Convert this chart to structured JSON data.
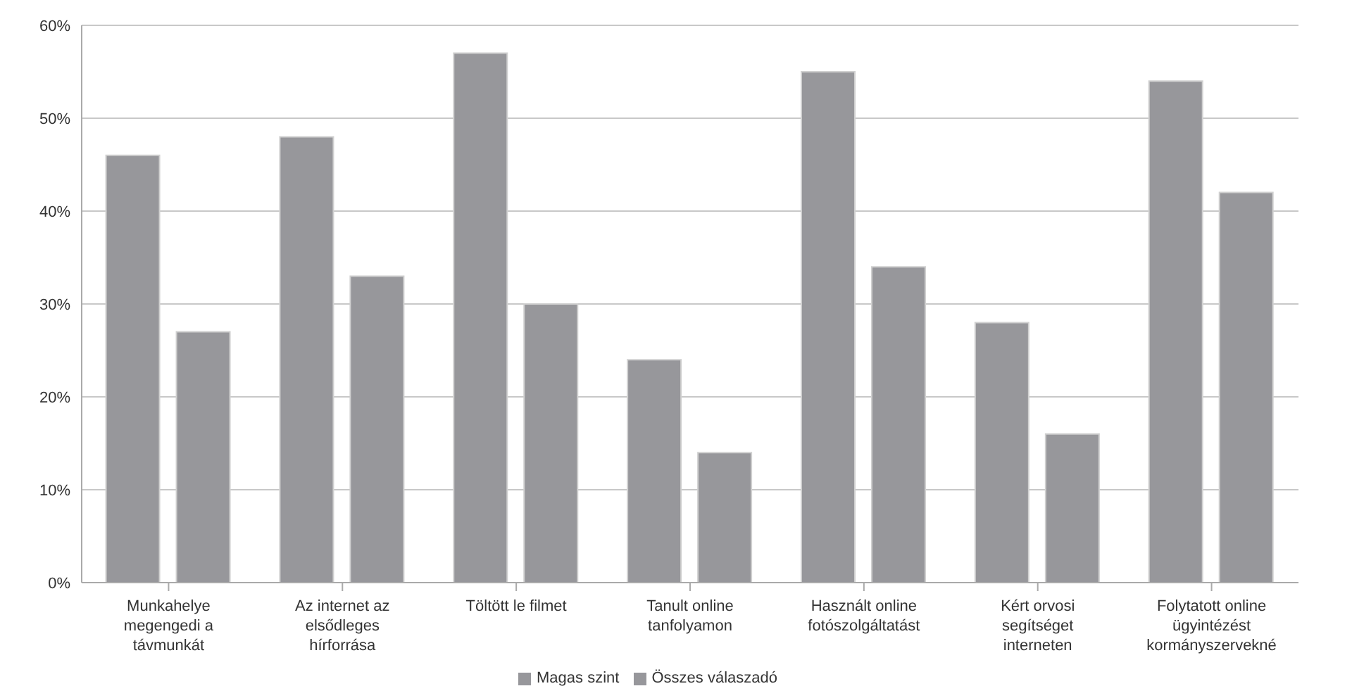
{
  "chart_data": {
    "type": "bar",
    "categories": [
      "Munkahelye megengedi a távmunkát",
      "Az internet az elsődleges hírforrása",
      "Töltött le filmet",
      "Tanult online tanfolyamon",
      "Használt online fotószolgáltatást",
      "Kért orvosi segítséget interneten",
      "Folytatott online ügyintézést kormányszervekné"
    ],
    "series": [
      {
        "name": "Magas szint",
        "color": "#97979b",
        "values": [
          46,
          48,
          57,
          24,
          55,
          28,
          54
        ]
      },
      {
        "name": "Összes válaszadó",
        "color": "#97979b",
        "values": [
          27,
          33,
          30,
          14,
          34,
          16,
          42
        ]
      }
    ],
    "ylim": [
      0,
      60
    ],
    "yticks": [
      {
        "value": 0,
        "label": "0%"
      },
      {
        "value": 10,
        "label": "10%"
      },
      {
        "value": 20,
        "label": "20%"
      },
      {
        "value": 30,
        "label": "30%"
      },
      {
        "value": 40,
        "label": "40%"
      },
      {
        "value": 50,
        "label": "50%"
      },
      {
        "value": 60,
        "label": "60%"
      }
    ],
    "grid": "y",
    "legend": "bottom"
  }
}
